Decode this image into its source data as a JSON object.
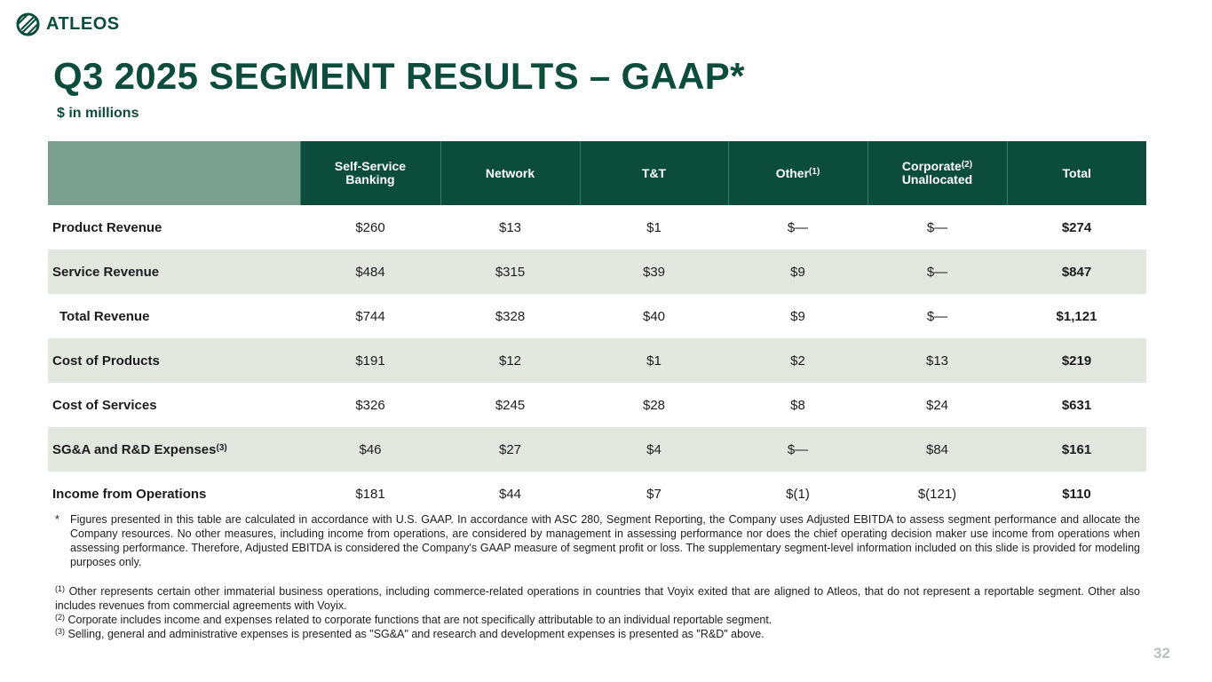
{
  "brand": {
    "name": "ATLEOS",
    "logo_icon": "atleos-globe-icon",
    "color": "#0b4d3a"
  },
  "title": "Q3 2025 SEGMENT RESULTS – GAAP*",
  "subtitle": "$ in millions",
  "table": {
    "columns": [
      {
        "line1": "Self-Service",
        "line2": "Banking",
        "sup": ""
      },
      {
        "line1": "Network",
        "line2": "",
        "sup": ""
      },
      {
        "line1": "T&T",
        "line2": "",
        "sup": ""
      },
      {
        "line1": "Other",
        "line2": "",
        "sup": "(1)"
      },
      {
        "line1": "Corporate",
        "line2": "Unallocated",
        "sup": "(2)"
      },
      {
        "line1": "Total",
        "line2": "",
        "sup": ""
      }
    ],
    "rows": [
      {
        "label": "Product Revenue",
        "sup": "",
        "values": [
          "$260",
          "$13",
          "$1",
          "$—",
          "$—"
        ],
        "total": "$274"
      },
      {
        "label": "Service Revenue",
        "sup": "",
        "values": [
          "$484",
          "$315",
          "$39",
          "$9",
          "$—"
        ],
        "total": "$847"
      },
      {
        "label": "Total  Revenue",
        "sup": "",
        "values": [
          "$744",
          "$328",
          "$40",
          "$9",
          "$—"
        ],
        "total": "$1,121"
      },
      {
        "label": "Cost of Products",
        "sup": "",
        "values": [
          "$191",
          "$12",
          "$1",
          "$2",
          "$13"
        ],
        "total": "$219"
      },
      {
        "label": "Cost of Services",
        "sup": "",
        "values": [
          "$326",
          "$245",
          "$28",
          "$8",
          "$24"
        ],
        "total": "$631"
      },
      {
        "label": "SG&A and R&D Expenses",
        "sup": "(3)",
        "values": [
          "$46",
          "$27",
          "$4",
          "$—",
          "$84"
        ],
        "total": "$161"
      },
      {
        "label": "Income from Operations",
        "sup": "",
        "values": [
          "$181",
          "$44",
          "$7",
          "$(1)",
          "$(121)"
        ],
        "total": "$110"
      }
    ]
  },
  "notes": {
    "star_marker": "*",
    "star_text": "Figures presented in this table are calculated in accordance with U.S. GAAP. In accordance with ASC 280, Segment Reporting, the Company uses Adjusted EBITDA to assess segment performance and allocate the Company resources. No other measures, including income from operations, are considered by management in assessing performance nor does the chief operating decision maker use income from operations when assessing performance. Therefore, Adjusted EBITDA is considered the Company's GAAP measure of segment profit or loss. The supplementary segment-level information included on this slide is provided for modeling purposes only.",
    "footnotes": [
      {
        "marker": "(1)",
        "text": "Other represents certain other immaterial business operations, including commerce-related operations in countries that Voyix exited that are aligned to Atleos, that do not represent a reportable segment. Other also includes revenues from commercial agreements with Voyix."
      },
      {
        "marker": "(2)",
        "text": "Corporate includes income and expenses related to corporate functions that are not specifically attributable to an individual reportable segment."
      },
      {
        "marker": "(3)",
        "text": "Selling, general and administrative expenses is presented as \"SG&A\" and research and development expenses is presented as \"R&D\" above."
      }
    ]
  },
  "page_number": "32"
}
